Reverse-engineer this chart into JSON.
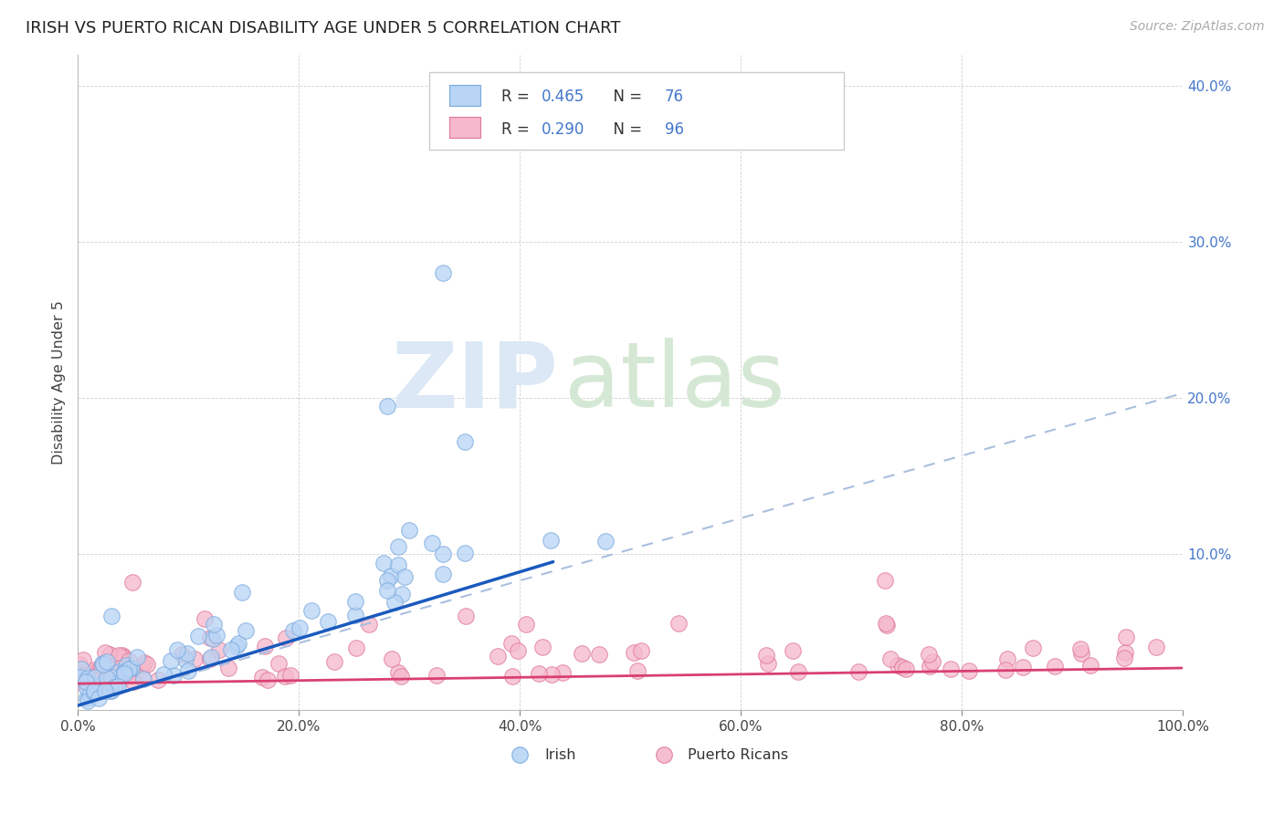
{
  "title": "IRISH VS PUERTO RICAN DISABILITY AGE UNDER 5 CORRELATION CHART",
  "source": "Source: ZipAtlas.com",
  "ylabel": "Disability Age Under 5",
  "xlim": [
    0,
    1.0
  ],
  "ylim": [
    0,
    0.42
  ],
  "xticks": [
    0.0,
    0.2,
    0.4,
    0.6,
    0.8,
    1.0
  ],
  "yticks": [
    0.0,
    0.1,
    0.2,
    0.3,
    0.4
  ],
  "xtick_labels": [
    "0.0%",
    "20.0%",
    "40.0%",
    "60.0%",
    "80.0%",
    "100.0%"
  ],
  "right_ytick_labels": [
    "",
    "10.0%",
    "20.0%",
    "30.0%",
    "40.0%"
  ],
  "irish_color_face": "#b8d4f5",
  "irish_color_edge": "#7aaade",
  "pr_color_face": "#f5b8cc",
  "pr_color_edge": "#e07898",
  "irish_line_color": "#1a5abf",
  "irish_dash_color": "#aabfde",
  "pr_line_color": "#d94070",
  "watermark_zip_color": "#dce8f5",
  "watermark_atlas_color": "#d5e8d5",
  "legend_R_N_color": "#4477cc",
  "legend_text_color": "#333333",
  "right_axis_color": "#4477cc",
  "irish_seed": 42,
  "pr_seed": 99,
  "irish_line_intercept": 0.003,
  "irish_line_slope": 0.22,
  "irish_dash_slope": 0.2,
  "pr_line_intercept": 0.017,
  "pr_line_slope": 0.01
}
